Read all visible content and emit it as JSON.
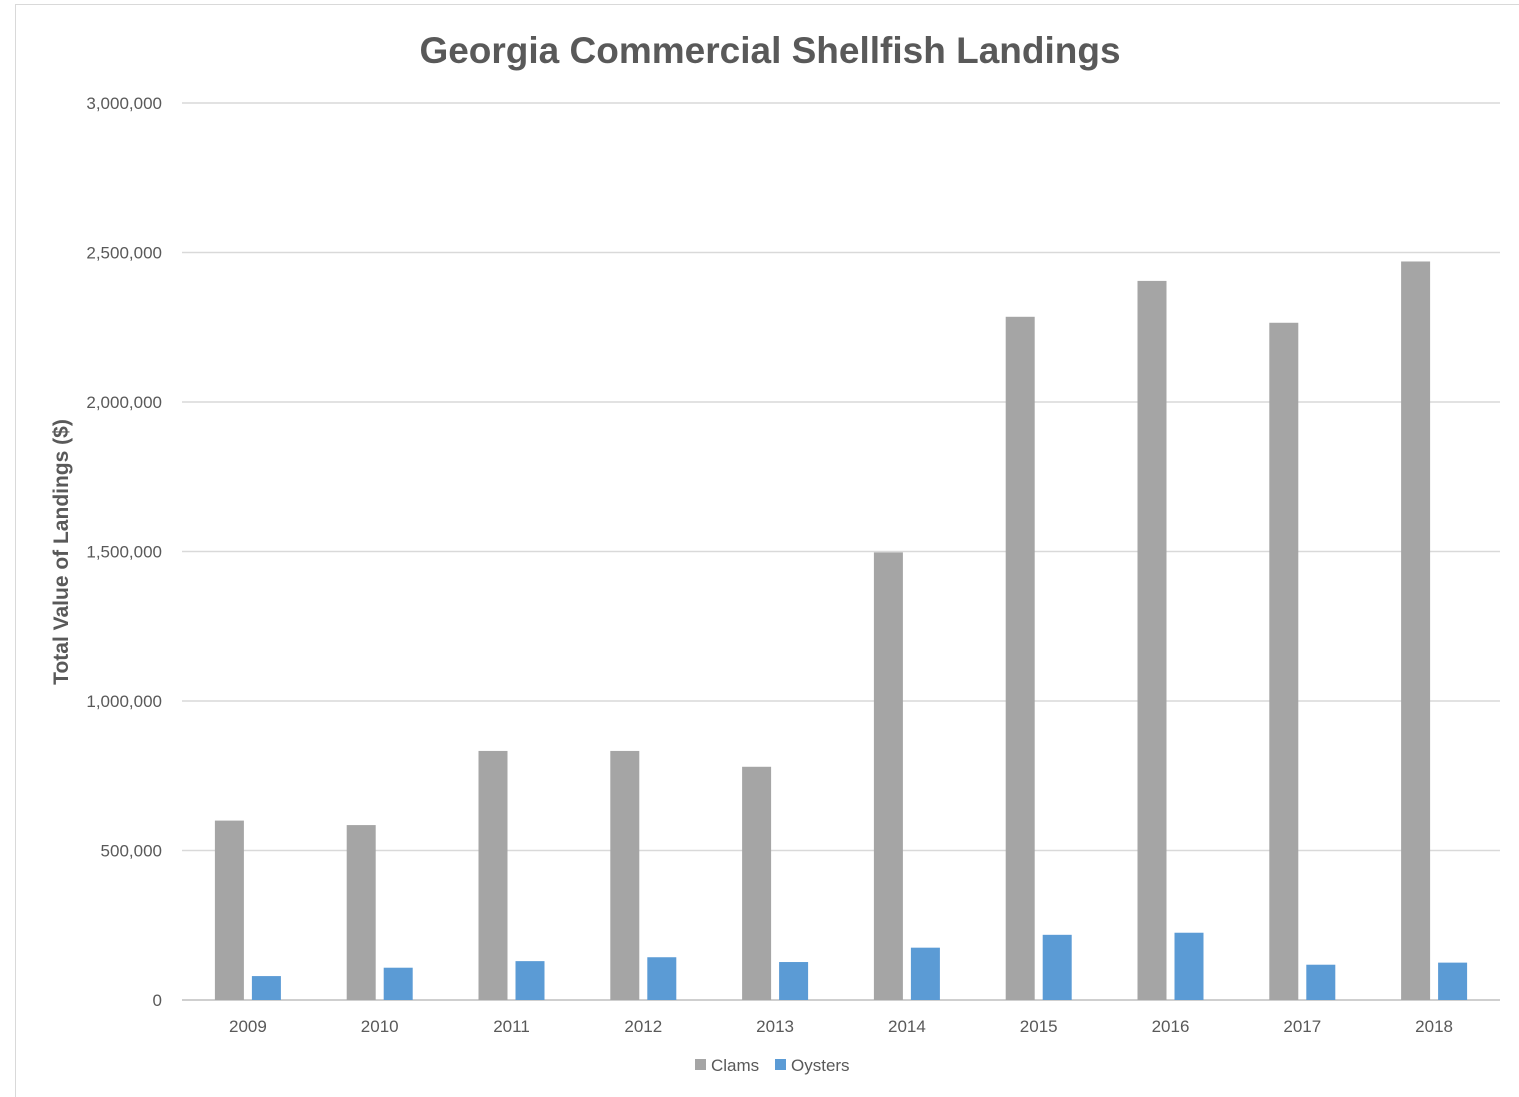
{
  "chart_data": {
    "type": "bar",
    "title": "Georgia Commercial Shellfish Landings",
    "xlabel": "",
    "ylabel": "Total Value of Landings ($)",
    "ylim": [
      0,
      3000000
    ],
    "yticks": [
      0,
      500000,
      1000000,
      1500000,
      2000000,
      2500000,
      3000000
    ],
    "ytick_labels": [
      "0",
      "500,000",
      "1,000,000",
      "1,500,000",
      "2,000,000",
      "2,500,000",
      "3,000,000"
    ],
    "categories": [
      "2009",
      "2010",
      "2011",
      "2012",
      "2013",
      "2014",
      "2015",
      "2016",
      "2017",
      "2018"
    ],
    "series": [
      {
        "name": "Clams",
        "color": "#a5a5a5",
        "values": [
          600000,
          585000,
          833000,
          833000,
          780000,
          1497000,
          2285000,
          2405000,
          2265000,
          2470000
        ]
      },
      {
        "name": "Oysters",
        "color": "#5b9bd5",
        "values": [
          80000,
          108000,
          130000,
          143000,
          127000,
          175000,
          218000,
          225000,
          118000,
          125000
        ]
      }
    ],
    "grid": true,
    "legend_position": "bottom"
  }
}
